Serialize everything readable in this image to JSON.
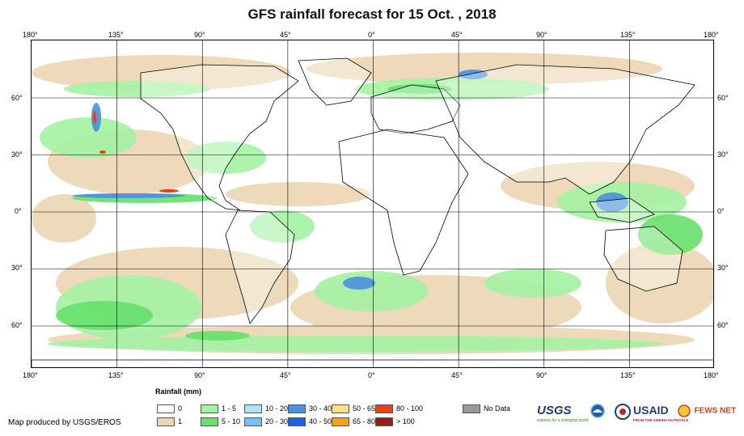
{
  "title": "GFS rainfall forecast for 15 Oct. , 2018",
  "longitude_labels": [
    "180°",
    "135°",
    "90°",
    "45°",
    "0°",
    "45°",
    "90°",
    "135°",
    "180°"
  ],
  "latitude_labels": [
    "60°",
    "30°",
    "0°",
    "30°",
    "60°"
  ],
  "legend": {
    "title": "Rainfall (mm)",
    "items": [
      {
        "label": "0",
        "color": "#ffffff"
      },
      {
        "label": "1",
        "color": "#ecd6b4"
      },
      {
        "label": "1 - 5",
        "color": "#a3f2a3"
      },
      {
        "label": "5 - 10",
        "color": "#67e06c"
      },
      {
        "label": "10 - 20",
        "color": "#aee3f5"
      },
      {
        "label": "20 - 30",
        "color": "#7cbdf2"
      },
      {
        "label": "30 - 40",
        "color": "#4a8fe0"
      },
      {
        "label": "40 - 50",
        "color": "#1f5ee6"
      },
      {
        "label": "50 - 65",
        "color": "#fde07a"
      },
      {
        "label": "65 - 80",
        "color": "#fba21a"
      },
      {
        "label": "80 - 100",
        "color": "#ee3f12"
      },
      {
        "label": "> 100",
        "color": "#9e1a1a"
      },
      {
        "label": "No Data",
        "color": "#999999"
      }
    ]
  },
  "credit": "Map produced by USGS/EROS",
  "logos": {
    "usgs": "USGS",
    "usgs_tagline": "science for a changing world",
    "usaid": "USAID",
    "usaid_tagline": "FROM THE AMERICAN PEOPLE",
    "fewsnet": "FEWS NET"
  }
}
